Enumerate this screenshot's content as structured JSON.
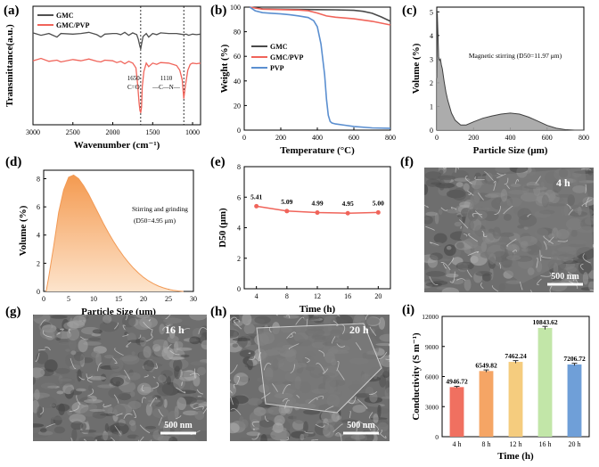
{
  "chart_data": [
    {
      "panel": "(a)",
      "type": "line",
      "xlabel": "Wavenumber (cm⁻¹)",
      "ylabel": "Transmittance(a.u.)",
      "xlim": [
        3000,
        900
      ],
      "ylim": [
        0,
        1
      ],
      "xticks": [
        3000,
        2500,
        2000,
        1500,
        1000
      ],
      "yticks": [],
      "legend": [
        "GMC",
        "GMC/PVP"
      ],
      "legend_position": "top-left",
      "colors": [
        "#505050",
        "#f0645a"
      ],
      "annotations": [
        {
          "text": "1650",
          "x": 1740,
          "y": 0.375
        },
        {
          "text": "C=O",
          "x": 1740,
          "y": 0.3
        },
        {
          "text": "1110",
          "x": 1330,
          "y": 0.375
        },
        {
          "text": "—C—N—",
          "x": 1330,
          "y": 0.3
        }
      ],
      "marker_lines": [
        1650,
        1110
      ],
      "series": [
        {
          "name": "GMC",
          "x": [
            3000,
            2900,
            2800,
            2700,
            2650,
            2500,
            2400,
            2300,
            2200,
            2150,
            2100,
            2000,
            1950,
            1900,
            1850,
            1800,
            1750,
            1700,
            1680,
            1660,
            1650,
            1640,
            1620,
            1580,
            1550,
            1500,
            1450,
            1400,
            1300,
            1200,
            1150,
            1110,
            1080,
            1050,
            1000,
            950,
            900
          ],
          "y": [
            0.775,
            0.755,
            0.77,
            0.74,
            0.77,
            0.765,
            0.77,
            0.78,
            0.76,
            0.74,
            0.765,
            0.77,
            0.77,
            0.76,
            0.78,
            0.755,
            0.775,
            0.76,
            0.72,
            0.66,
            0.64,
            0.68,
            0.745,
            0.77,
            0.74,
            0.77,
            0.76,
            0.775,
            0.77,
            0.77,
            0.765,
            0.76,
            0.765,
            0.755,
            0.765,
            0.76,
            0.765
          ]
        },
        {
          "name": "GMC/PVP",
          "x": [
            3000,
            2900,
            2800,
            2700,
            2650,
            2500,
            2400,
            2300,
            2200,
            2150,
            2100,
            2000,
            1950,
            1900,
            1850,
            1800,
            1750,
            1710,
            1690,
            1670,
            1660,
            1650,
            1640,
            1630,
            1610,
            1580,
            1550,
            1500,
            1450,
            1400,
            1300,
            1200,
            1160,
            1130,
            1110,
            1090,
            1060,
            1030,
            1000,
            950,
            900
          ],
          "y": [
            0.54,
            0.56,
            0.535,
            0.545,
            0.53,
            0.55,
            0.54,
            0.555,
            0.535,
            0.53,
            0.545,
            0.54,
            0.525,
            0.535,
            0.515,
            0.535,
            0.52,
            0.48,
            0.35,
            0.18,
            0.12,
            0.1,
            0.15,
            0.32,
            0.45,
            0.52,
            0.49,
            0.52,
            0.51,
            0.525,
            0.52,
            0.5,
            0.46,
            0.38,
            0.22,
            0.33,
            0.46,
            0.51,
            0.52,
            0.515,
            0.52
          ]
        }
      ]
    },
    {
      "panel": "(b)",
      "type": "line",
      "xlabel": "Temperature (°C)",
      "ylabel": "Weight (%)",
      "xlim": [
        0,
        800
      ],
      "ylim": [
        0,
        100
      ],
      "xticks": [
        0,
        200,
        400,
        600,
        800
      ],
      "yticks": [
        0,
        20,
        40,
        60,
        80,
        100
      ],
      "legend": [
        "GMC",
        "GMC/PVP",
        "PVP"
      ],
      "legend_position": "center-left",
      "colors": [
        "#4a4a4a",
        "#f0645a",
        "#5b8fd0"
      ],
      "series": [
        {
          "name": "GMC",
          "x": [
            30,
            100,
            200,
            300,
            400,
            500,
            600,
            650,
            700,
            750,
            800
          ],
          "y": [
            100,
            98.6,
            98.3,
            98.1,
            98,
            97.8,
            97.4,
            96.6,
            95,
            92,
            88.5
          ]
        },
        {
          "name": "GMC/PVP",
          "x": [
            30,
            100,
            200,
            300,
            350,
            400,
            450,
            500,
            600,
            700,
            800
          ],
          "y": [
            100,
            98.3,
            98,
            97.6,
            97,
            95.2,
            92.8,
            91.8,
            90.5,
            88.5,
            85.5
          ]
        },
        {
          "name": "PVP",
          "x": [
            30,
            60,
            100,
            150,
            200,
            250,
            300,
            350,
            380,
            400,
            420,
            440,
            450,
            460,
            470,
            480,
            500,
            550,
            600,
            700,
            800
          ],
          "y": [
            100,
            97,
            95.5,
            95,
            94.5,
            93.8,
            92.8,
            91.5,
            89,
            84,
            70,
            45,
            25,
            12,
            7,
            5.8,
            5,
            4,
            3,
            1.8,
            1.5
          ]
        }
      ]
    },
    {
      "panel": "(c)",
      "type": "area",
      "xlabel": "Particle Size (μm)",
      "ylabel": "Volume (%)",
      "xlim": [
        0,
        800
      ],
      "ylim": [
        0,
        5.2
      ],
      "xticks": [
        0,
        200,
        400,
        600,
        800
      ],
      "yticks": [
        0,
        1,
        2,
        3,
        4,
        5
      ],
      "annotation": "Magnetic stirring (D50=11.97 μm)",
      "color": "#808080",
      "x": [
        0,
        3,
        6,
        10,
        15,
        20,
        25,
        30,
        40,
        50,
        60,
        80,
        100,
        130,
        160,
        200,
        250,
        300,
        350,
        400,
        450,
        500,
        550,
        600,
        650,
        700,
        750,
        800
      ],
      "y": [
        2.2,
        4.95,
        4.25,
        3.1,
        2.95,
        3.0,
        2.75,
        2.6,
        2.05,
        1.6,
        1.25,
        0.72,
        0.42,
        0.22,
        0.22,
        0.35,
        0.5,
        0.6,
        0.68,
        0.72,
        0.68,
        0.55,
        0.38,
        0.2,
        0.08,
        0.02,
        0.0,
        0.0
      ]
    },
    {
      "panel": "(d)",
      "type": "area",
      "xlabel": "Particle Size (μm)",
      "ylabel": "Volume (%)",
      "xlim": [
        0,
        30
      ],
      "ylim": [
        0,
        8.6
      ],
      "xticks": [
        0,
        5,
        10,
        15,
        20,
        25,
        30
      ],
      "yticks": [
        0,
        2,
        4,
        6,
        8
      ],
      "annotation_lines": [
        "Stirring and grinding",
        "(D50=4.95 μm)"
      ],
      "color": "#f5a060",
      "x": [
        0.5,
        1,
        2,
        3,
        4,
        5,
        6,
        7,
        8,
        9,
        10,
        11,
        12,
        13,
        14,
        15,
        16,
        17,
        18,
        19,
        20,
        21,
        22,
        23,
        24,
        25,
        26,
        27,
        28
      ],
      "y": [
        0,
        1.0,
        3.2,
        5.6,
        7.2,
        8.1,
        8.25,
        8.0,
        7.5,
        6.9,
        6.2,
        5.5,
        4.8,
        4.15,
        3.55,
        3.0,
        2.5,
        2.05,
        1.65,
        1.3,
        1.0,
        0.75,
        0.55,
        0.38,
        0.25,
        0.15,
        0.08,
        0.03,
        0.0
      ]
    },
    {
      "panel": "(e)",
      "type": "line",
      "xlabel": "Time (h)",
      "ylabel": "D50 (μm)",
      "xlim": [
        2.4,
        21.6
      ],
      "ylim": [
        0,
        8
      ],
      "xticks": [
        4,
        8,
        12,
        16,
        20
      ],
      "yticks": [
        0,
        2,
        4,
        6,
        8
      ],
      "color": "#f0645a",
      "x": [
        4,
        8,
        12,
        16,
        20
      ],
      "y": [
        5.41,
        5.09,
        4.99,
        4.95,
        5.0
      ],
      "labels": [
        "5.41",
        "5.09",
        "4.99",
        "4.95",
        "5.00"
      ]
    },
    {
      "panel": "(i)",
      "type": "bar",
      "xlabel": "Time (h)",
      "ylabel": "Conductivity (S m⁻¹)",
      "ylim": [
        0,
        12000
      ],
      "yticks": [
        0,
        3000,
        6000,
        9000,
        12000
      ],
      "categories": [
        "4 h",
        "8 h",
        "12 h",
        "16 h",
        "20 h"
      ],
      "values": [
        4946.72,
        6549.82,
        7462.24,
        10843.62,
        7206.72
      ],
      "errors": [
        80,
        110,
        130,
        160,
        120
      ],
      "labels": [
        "4946.72",
        "6549.82",
        "7462.24",
        "10843.62",
        "7206.72"
      ],
      "colors": [
        "#f07060",
        "#f5a565",
        "#f5cc7e",
        "#c2e6a8",
        "#6f9fd8"
      ]
    }
  ],
  "sem_images": [
    {
      "panel": "(f)",
      "label": "4 h",
      "scale": "500 nm"
    },
    {
      "panel": "(g)",
      "label": "16 h",
      "scale": "500 nm"
    },
    {
      "panel": "(h)",
      "label": "20 h",
      "scale": "500 nm"
    }
  ]
}
